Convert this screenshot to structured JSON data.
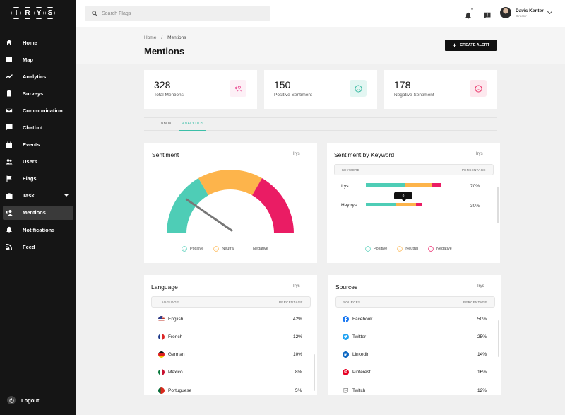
{
  "brand": {
    "logo_letters": [
      "I",
      "R",
      "Y",
      "S"
    ]
  },
  "sidebar": {
    "items": [
      {
        "label": "Home",
        "icon": "home-icon"
      },
      {
        "label": "Map",
        "icon": "map-icon"
      },
      {
        "label": "Analytics",
        "icon": "analytics-icon"
      },
      {
        "label": "Surveys",
        "icon": "clipboard-icon"
      },
      {
        "label": "Communication",
        "icon": "mail-icon"
      },
      {
        "label": "Chatbot",
        "icon": "chat-icon"
      },
      {
        "label": "Events",
        "icon": "calendar-icon"
      },
      {
        "label": "Users",
        "icon": "users-icon"
      },
      {
        "label": "Flags",
        "icon": "flag-icon"
      },
      {
        "label": "Task",
        "icon": "briefcase-icon"
      },
      {
        "label": "Mentions",
        "icon": "mentions-icon",
        "active": true
      },
      {
        "label": "Notifications",
        "icon": "bell-icon"
      },
      {
        "label": "Feed",
        "icon": "rss-icon"
      }
    ],
    "logout_label": "Logout"
  },
  "topbar": {
    "search_placeholder": "Search Flags",
    "user_name": "Davis Kenter",
    "user_role": "Director"
  },
  "page": {
    "breadcrumb_home": "Home",
    "breadcrumb_sep": "/",
    "breadcrumb_current": "Mentions",
    "title": "Mentions",
    "create_alert_label": "CREATE ALERT"
  },
  "stats": [
    {
      "value": "328",
      "label": "Total Mentions",
      "color": "#e93e8b",
      "bg": "#fdf0f6"
    },
    {
      "value": "150",
      "label": "Positive Sentiment",
      "color": "#2eb69d",
      "bg": "#e3f6f2"
    },
    {
      "value": "178",
      "label": "Negative Sentiment",
      "color": "#e8245d",
      "bg": "#fde8ee"
    }
  ],
  "tabs": {
    "inbox": "INBOX",
    "analytics": "ANALYTICS"
  },
  "sentiment": {
    "title": "Sentiment",
    "brand": "Irys",
    "segments": [
      {
        "name": "Positive",
        "color": "#4ecdb6",
        "share": 0.3333
      },
      {
        "name": "Neutral",
        "color": "#fdb44b",
        "share": 0.3333
      },
      {
        "name": "Negative",
        "color": "#ea1c64",
        "share": 0.3334
      }
    ],
    "needle_value": 0.21,
    "legend": [
      "Positive",
      "Neutral",
      "Negative"
    ]
  },
  "keyword": {
    "title": "Sentiment by Keyword",
    "brand": "Irys",
    "col_keyword": "KEYWORD",
    "col_percentage": "PERCENTAGE",
    "rows": [
      {
        "keyword": "Irys",
        "percentage": "70%",
        "positive": 0.52,
        "neutral": 0.35,
        "negative": 0.13
      },
      {
        "keyword": "HeyIrys",
        "percentage": "30%",
        "positive": 0.55,
        "neutral": 0.35,
        "negative": 0.1
      }
    ],
    "tooltip": "8",
    "legend": [
      "Positive",
      "Neutral",
      "Negative"
    ]
  },
  "language": {
    "title": "Language",
    "brand": "Irys",
    "col_language": "LANGUAGE",
    "col_percentage": "PERCENTAGE",
    "rows": [
      {
        "name": "English",
        "percentage": "42%",
        "flag": "us-flag-icon"
      },
      {
        "name": "French",
        "percentage": "12%",
        "flag": "france-flag-icon"
      },
      {
        "name": "German",
        "percentage": "10%",
        "flag": "germany-flag-icon"
      },
      {
        "name": "Mexico",
        "percentage": "8%",
        "flag": "mexico-flag-icon"
      },
      {
        "name": "Portuguese",
        "percentage": "5%",
        "flag": "portugal-flag-icon"
      }
    ]
  },
  "sources": {
    "title": "Sources",
    "brand": "Irys",
    "col_sources": "SOURCES",
    "col_percentage": "PERCENTAGE",
    "rows": [
      {
        "name": "Facebook",
        "percentage": "50%",
        "icon": "facebook-icon"
      },
      {
        "name": "Twitter",
        "percentage": "25%",
        "icon": "twitter-icon"
      },
      {
        "name": "Linkedin",
        "percentage": "14%",
        "icon": "linkedin-icon"
      },
      {
        "name": "Pinterest",
        "percentage": "16%",
        "icon": "pinterest-icon"
      },
      {
        "name": "Twitch",
        "percentage": "12%",
        "icon": "twitch-icon"
      }
    ]
  }
}
